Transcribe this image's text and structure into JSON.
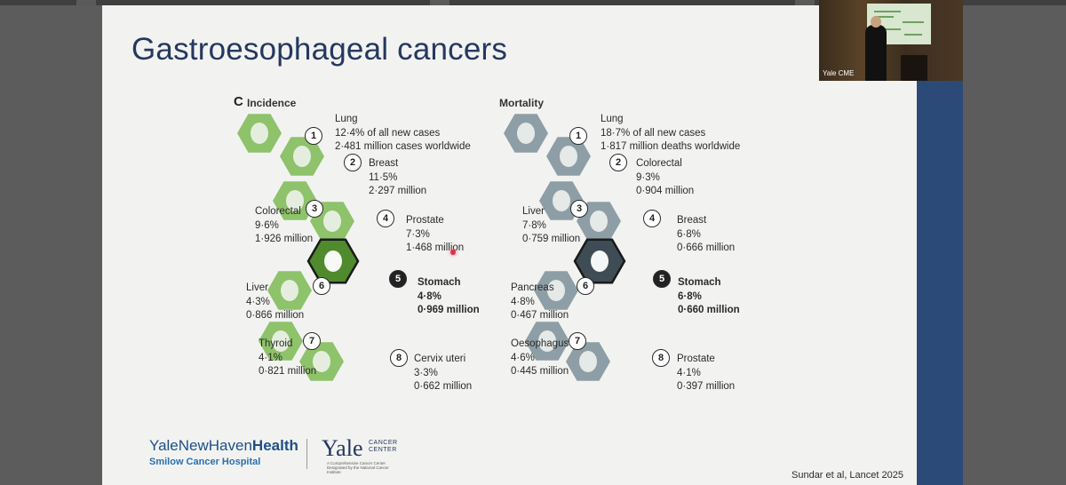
{
  "slide": {
    "title": "Gastroesophageal cancers",
    "panel_letter": "C",
    "incidence_header": "Incidence",
    "mortality_header": "Mortality",
    "citation": "Sundar et al, Lancet 2025"
  },
  "incidence": [
    {
      "rank": "1",
      "name": "Lung",
      "lines": [
        "12·4% of all new cases",
        "2·481 million cases worldwide"
      ]
    },
    {
      "rank": "2",
      "name": "Breast",
      "lines": [
        "11·5%",
        "2·297 million"
      ]
    },
    {
      "rank": "3",
      "name": "Colorectal",
      "lines": [
        "9·6%",
        "1·926 million"
      ]
    },
    {
      "rank": "4",
      "name": "Prostate",
      "lines": [
        "7·3%",
        "1·468 million"
      ]
    },
    {
      "rank": "5",
      "name": "Stomach",
      "lines": [
        "4·8%",
        "0·969 million"
      ]
    },
    {
      "rank": "6",
      "name": "Liver",
      "lines": [
        "4·3%",
        "0·866 million"
      ]
    },
    {
      "rank": "7",
      "name": "Thyroid",
      "lines": [
        "4·1%",
        "0·821 million"
      ]
    },
    {
      "rank": "8",
      "name": "Cervix uteri",
      "lines": [
        "3·3%",
        "0·662 million"
      ]
    }
  ],
  "mortality": [
    {
      "rank": "1",
      "name": "Lung",
      "lines": [
        "18·7% of all new cases",
        "1·817 million deaths worldwide"
      ]
    },
    {
      "rank": "2",
      "name": "Colorectal",
      "lines": [
        "9·3%",
        "0·904 million"
      ]
    },
    {
      "rank": "3",
      "name": "Liver",
      "lines": [
        "7·8%",
        "0·759 million"
      ]
    },
    {
      "rank": "4",
      "name": "Breast",
      "lines": [
        "6·8%",
        "0·666 million"
      ]
    },
    {
      "rank": "5",
      "name": "Stomach",
      "lines": [
        "6·8%",
        "0·660 million"
      ]
    },
    {
      "rank": "6",
      "name": "Pancreas",
      "lines": [
        "4·8%",
        "0·467 million"
      ]
    },
    {
      "rank": "7",
      "name": "Oesophagus",
      "lines": [
        "4·6%",
        "0·445 million"
      ]
    },
    {
      "rank": "8",
      "name": "Prostate",
      "lines": [
        "4·1%",
        "0·397 million"
      ]
    }
  ],
  "footer": {
    "ynhh_prefix": "YaleNewHaven",
    "ynhh_suffix": "Health",
    "smilow": "Smilow Cancer Hospital",
    "yale": "Yale",
    "cancer": "CANCER",
    "center": "CENTER",
    "yale_sub": "A Comprehensive Cancer Center Designated by the National Cancer Institute"
  },
  "video": {
    "label": "Yale CME"
  },
  "colors": {
    "incidence_hex": "#8ec26b",
    "incidence_highlight": "#4f8a2c",
    "mortality_hex": "#8e9ea6",
    "mortality_highlight": "#3f4c55",
    "title": "#25385f",
    "band": "#2c4a78"
  }
}
